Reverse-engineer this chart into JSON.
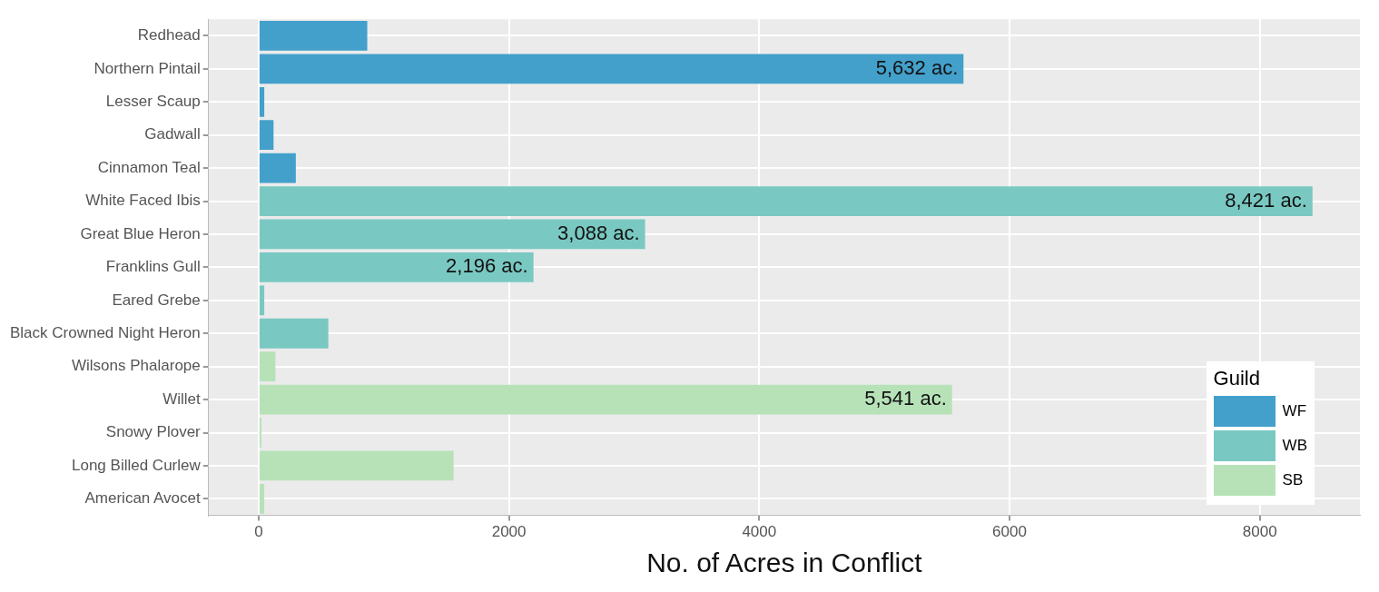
{
  "chart_data": {
    "type": "bar",
    "orientation": "horizontal",
    "stacked": true,
    "xlabel": "No. of Acres in Conflict",
    "legend_title": "Guild",
    "legend": "bottom right",
    "grid": true,
    "categories": [
      "Redhead",
      "Northern Pintail",
      "Lesser Scaup",
      "Gadwall",
      "Cinnamon Teal",
      "White Faced Ibis",
      "Great Blue Heron",
      "Franklins Gull",
      "Eared Grebe",
      "Black Crowned Night Heron",
      "Wilsons Phalarope",
      "Willet",
      "Snowy Plover",
      "Long Billed Curlew",
      "American Avocet"
    ],
    "xlim": [
      -400,
      8800
    ],
    "xticks": [
      0,
      2000,
      4000,
      6000,
      8000
    ],
    "series": [
      {
        "name": "WF",
        "color": "#43a0cb",
        "values": [
          868,
          5632,
          45,
          119,
          297,
          null,
          null,
          null,
          null,
          null,
          null,
          null,
          null,
          null,
          null
        ],
        "value_labels": [
          null,
          "5,632 ac.",
          null,
          null,
          null,
          null,
          null,
          null,
          null,
          null,
          null,
          null,
          null,
          null,
          null
        ]
      },
      {
        "name": "WB",
        "color": "#7ac8c2",
        "values": [
          null,
          null,
          null,
          null,
          null,
          8421,
          3088,
          2196,
          45,
          557,
          null,
          null,
          null,
          null,
          null
        ],
        "value_labels": [
          null,
          null,
          null,
          null,
          null,
          "8,421 ac.",
          "3,088 ac.",
          "2,196 ac.",
          null,
          null,
          null,
          null,
          null,
          null,
          null
        ]
      },
      {
        "name": "SB",
        "color": "#b7e2b8",
        "values": [
          null,
          null,
          null,
          null,
          null,
          null,
          null,
          null,
          null,
          null,
          134,
          5541,
          22,
          1558,
          45
        ],
        "value_labels": [
          null,
          null,
          null,
          null,
          null,
          null,
          null,
          null,
          null,
          null,
          null,
          "5,541 ac.",
          null,
          null,
          null
        ]
      }
    ]
  }
}
